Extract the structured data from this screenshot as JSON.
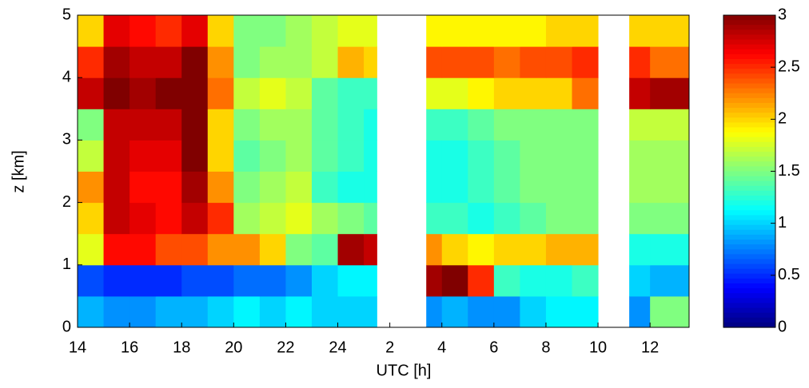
{
  "chart_data": {
    "type": "heatmap",
    "xlabel": "UTC [h]",
    "ylabel": "z [km]",
    "x": [
      14,
      15,
      16,
      17,
      18,
      19,
      20,
      21,
      22,
      23,
      24,
      25,
      25.5,
      27.4,
      28,
      29,
      30,
      31,
      32,
      33,
      34,
      35.2,
      36,
      37.5
    ],
    "y": [
      0,
      0.5,
      1,
      1.5,
      2,
      2.5,
      3,
      3.5,
      4,
      4.5,
      5
    ],
    "z": [
      [
        0.9,
        0.8,
        0.8,
        0.9,
        0.9,
        1.0,
        1.1,
        1.0,
        1.1,
        1.0,
        1.0,
        1.0,
        null,
        0.8,
        0.9,
        0.8,
        0.8,
        1.0,
        1.1,
        1.1,
        null,
        0.8,
        1.5
      ],
      [
        0.6,
        0.5,
        0.5,
        0.5,
        0.6,
        0.6,
        0.7,
        0.7,
        0.8,
        1.0,
        1.1,
        1.1,
        null,
        2.9,
        3.0,
        2.5,
        1.3,
        1.2,
        1.2,
        1.3,
        null,
        1.0,
        0.9
      ],
      [
        1.8,
        2.6,
        2.6,
        2.4,
        2.4,
        2.2,
        2.2,
        2.0,
        1.5,
        1.4,
        2.9,
        2.8,
        null,
        2.2,
        2.0,
        1.9,
        2.0,
        2.0,
        2.1,
        2.1,
        null,
        1.2,
        1.2
      ],
      [
        2.0,
        2.8,
        2.7,
        2.6,
        2.8,
        2.5,
        1.6,
        1.7,
        1.8,
        1.6,
        1.5,
        1.4,
        null,
        1.3,
        1.3,
        1.2,
        1.3,
        1.4,
        1.5,
        1.5,
        null,
        1.5,
        1.5
      ],
      [
        2.2,
        2.8,
        2.6,
        2.6,
        2.9,
        2.2,
        1.5,
        1.6,
        1.7,
        1.3,
        1.2,
        1.2,
        null,
        1.2,
        1.2,
        1.3,
        1.4,
        1.5,
        1.5,
        1.5,
        null,
        1.6,
        1.6
      ],
      [
        1.7,
        2.8,
        2.7,
        2.7,
        3.0,
        2.0,
        1.4,
        1.5,
        1.6,
        1.4,
        1.3,
        1.2,
        null,
        1.2,
        1.2,
        1.3,
        1.4,
        1.5,
        1.5,
        1.5,
        null,
        1.6,
        1.6
      ],
      [
        1.5,
        2.8,
        2.8,
        2.8,
        3.0,
        2.0,
        1.5,
        1.6,
        1.6,
        1.4,
        1.3,
        1.2,
        null,
        1.3,
        1.3,
        1.4,
        1.5,
        1.5,
        1.5,
        1.5,
        null,
        1.7,
        1.7
      ],
      [
        2.8,
        3.0,
        2.9,
        3.0,
        3.0,
        2.3,
        1.7,
        1.8,
        1.7,
        1.4,
        1.3,
        1.3,
        null,
        1.8,
        1.8,
        1.9,
        2.0,
        2.0,
        2.0,
        2.3,
        null,
        2.8,
        2.9
      ],
      [
        2.5,
        2.9,
        2.8,
        2.8,
        3.0,
        2.2,
        1.5,
        1.6,
        1.6,
        1.7,
        2.1,
        2.0,
        null,
        2.4,
        2.4,
        2.4,
        2.3,
        2.4,
        2.4,
        2.5,
        null,
        2.5,
        2.3
      ],
      [
        2.0,
        2.7,
        2.6,
        2.5,
        2.7,
        2.0,
        1.5,
        1.5,
        1.6,
        1.7,
        1.8,
        1.8,
        null,
        1.9,
        1.9,
        1.9,
        1.9,
        1.9,
        2.0,
        2.0,
        null,
        2.0,
        2.0
      ]
    ],
    "colormap": "jet",
    "clim": [
      0,
      3
    ],
    "xlim": [
      14,
      37.5
    ],
    "ylim": [
      0,
      5
    ],
    "xticks": [
      14,
      16,
      18,
      20,
      22,
      24,
      {
        "value": 26,
        "label": "2"
      },
      {
        "value": 28,
        "label": "4"
      },
      {
        "value": 30,
        "label": "6"
      },
      {
        "value": 32,
        "label": "8"
      },
      {
        "value": 34,
        "label": "10"
      },
      {
        "value": 36,
        "label": "12"
      }
    ],
    "yticks": [
      0,
      1,
      2,
      3,
      4,
      5
    ],
    "cticks": [
      0,
      0.5,
      1,
      1.5,
      2,
      2.5,
      3
    ]
  }
}
